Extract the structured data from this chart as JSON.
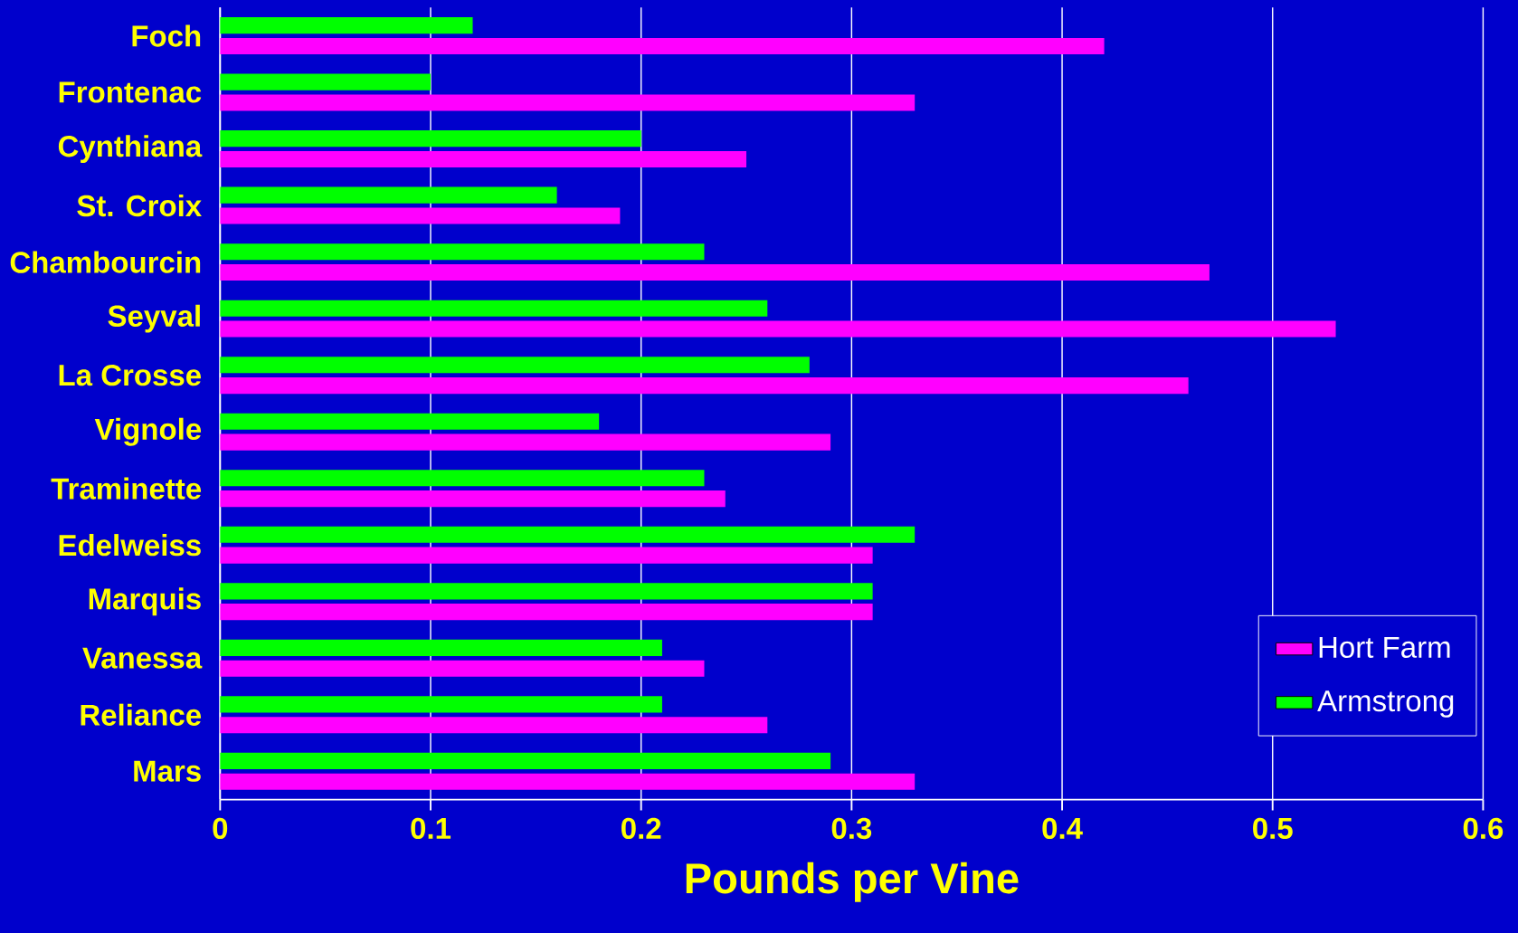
{
  "chart_data": {
    "type": "bar",
    "orientation": "horizontal",
    "xlabel": "Pounds per Vine",
    "categories": [
      "Foch",
      "Frontenac",
      "Cynthiana",
      "St. Croix",
      "Chambourcin",
      "Seyval",
      "La Crosse",
      "Vignole",
      "Traminette",
      "Edelweiss",
      "Marquis",
      "Vanessa",
      "Reliance",
      "Mars"
    ],
    "series": [
      {
        "name": "Hort Farm",
        "color": "#ff00ff",
        "values": [
          0.42,
          0.33,
          0.25,
          0.19,
          0.47,
          0.53,
          0.46,
          0.29,
          0.24,
          0.31,
          0.31,
          0.23,
          0.26,
          0.33
        ]
      },
      {
        "name": "Armstrong",
        "color": "#00ff00",
        "values": [
          0.12,
          0.1,
          0.2,
          0.16,
          0.23,
          0.26,
          0.28,
          0.18,
          0.23,
          0.33,
          0.31,
          0.21,
          0.21,
          0.29
        ]
      }
    ],
    "xlim": [
      0,
      0.6
    ],
    "xticks": [
      0,
      0.1,
      0.2,
      0.3,
      0.4,
      0.5,
      0.6
    ],
    "grid": "x",
    "legend": "bottom right"
  }
}
